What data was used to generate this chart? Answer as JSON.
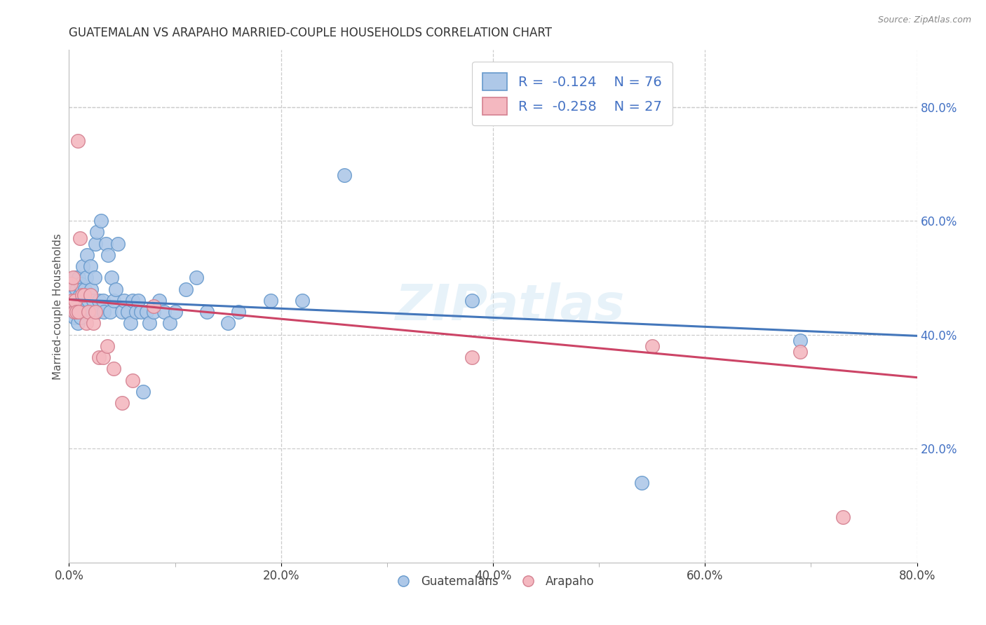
{
  "title": "GUATEMALAN VS ARAPAHO MARRIED-COUPLE HOUSEHOLDS CORRELATION CHART",
  "source": "Source: ZipAtlas.com",
  "ylabel": "Married-couple Households",
  "xlim": [
    0.0,
    0.8
  ],
  "ylim": [
    0.0,
    0.9
  ],
  "xtick_labels": [
    "0.0%",
    "",
    "20.0%",
    "",
    "40.0%",
    "",
    "60.0%",
    "",
    "80.0%"
  ],
  "xtick_vals": [
    0.0,
    0.1,
    0.2,
    0.3,
    0.4,
    0.5,
    0.6,
    0.7,
    0.8
  ],
  "xtick_display": [
    "0.0%",
    "20.0%",
    "40.0%",
    "60.0%",
    "80.0%"
  ],
  "xtick_display_vals": [
    0.0,
    0.2,
    0.4,
    0.6,
    0.8
  ],
  "ytick_right_labels": [
    "20.0%",
    "40.0%",
    "60.0%",
    "80.0%"
  ],
  "ytick_right_vals": [
    0.2,
    0.4,
    0.6,
    0.8
  ],
  "blue_color": "#aec8e8",
  "blue_edge_color": "#6699cc",
  "pink_color": "#f4b8c0",
  "pink_edge_color": "#d48090",
  "blue_line_color": "#4477bb",
  "pink_line_color": "#cc4466",
  "R_blue": -0.124,
  "N_blue": 76,
  "R_pink": -0.258,
  "N_pink": 27,
  "watermark": "ZIPatlas",
  "legend_label_blue": "Guatemalans",
  "legend_label_pink": "Arapaho",
  "guatemalan_x": [
    0.002,
    0.003,
    0.004,
    0.005,
    0.005,
    0.006,
    0.006,
    0.007,
    0.007,
    0.008,
    0.008,
    0.009,
    0.009,
    0.01,
    0.01,
    0.011,
    0.011,
    0.012,
    0.012,
    0.013,
    0.013,
    0.014,
    0.014,
    0.015,
    0.015,
    0.016,
    0.016,
    0.017,
    0.018,
    0.019,
    0.02,
    0.021,
    0.022,
    0.023,
    0.024,
    0.025,
    0.026,
    0.027,
    0.028,
    0.03,
    0.032,
    0.033,
    0.035,
    0.037,
    0.039,
    0.04,
    0.042,
    0.044,
    0.046,
    0.05,
    0.052,
    0.055,
    0.058,
    0.06,
    0.063,
    0.065,
    0.068,
    0.07,
    0.073,
    0.076,
    0.08,
    0.085,
    0.09,
    0.095,
    0.1,
    0.11,
    0.12,
    0.13,
    0.15,
    0.16,
    0.19,
    0.22,
    0.26,
    0.38,
    0.54,
    0.69
  ],
  "guatemalan_y": [
    0.46,
    0.48,
    0.44,
    0.47,
    0.43,
    0.5,
    0.46,
    0.45,
    0.48,
    0.44,
    0.42,
    0.5,
    0.46,
    0.44,
    0.47,
    0.49,
    0.43,
    0.45,
    0.48,
    0.46,
    0.52,
    0.44,
    0.46,
    0.48,
    0.44,
    0.5,
    0.46,
    0.54,
    0.46,
    0.44,
    0.52,
    0.48,
    0.44,
    0.46,
    0.5,
    0.56,
    0.58,
    0.44,
    0.46,
    0.6,
    0.46,
    0.44,
    0.56,
    0.54,
    0.44,
    0.5,
    0.46,
    0.48,
    0.56,
    0.44,
    0.46,
    0.44,
    0.42,
    0.46,
    0.44,
    0.46,
    0.44,
    0.3,
    0.44,
    0.42,
    0.44,
    0.46,
    0.44,
    0.42,
    0.44,
    0.48,
    0.5,
    0.44,
    0.42,
    0.44,
    0.46,
    0.46,
    0.68,
    0.46,
    0.14,
    0.39
  ],
  "arapaho_x": [
    0.002,
    0.003,
    0.004,
    0.005,
    0.006,
    0.007,
    0.008,
    0.009,
    0.01,
    0.012,
    0.014,
    0.016,
    0.018,
    0.02,
    0.023,
    0.025,
    0.028,
    0.032,
    0.036,
    0.042,
    0.05,
    0.06,
    0.08,
    0.38,
    0.55,
    0.69,
    0.73
  ],
  "arapaho_y": [
    0.49,
    0.46,
    0.5,
    0.44,
    0.46,
    0.44,
    0.74,
    0.44,
    0.57,
    0.47,
    0.47,
    0.42,
    0.44,
    0.47,
    0.42,
    0.44,
    0.36,
    0.36,
    0.38,
    0.34,
    0.28,
    0.32,
    0.45,
    0.36,
    0.38,
    0.37,
    0.08
  ]
}
